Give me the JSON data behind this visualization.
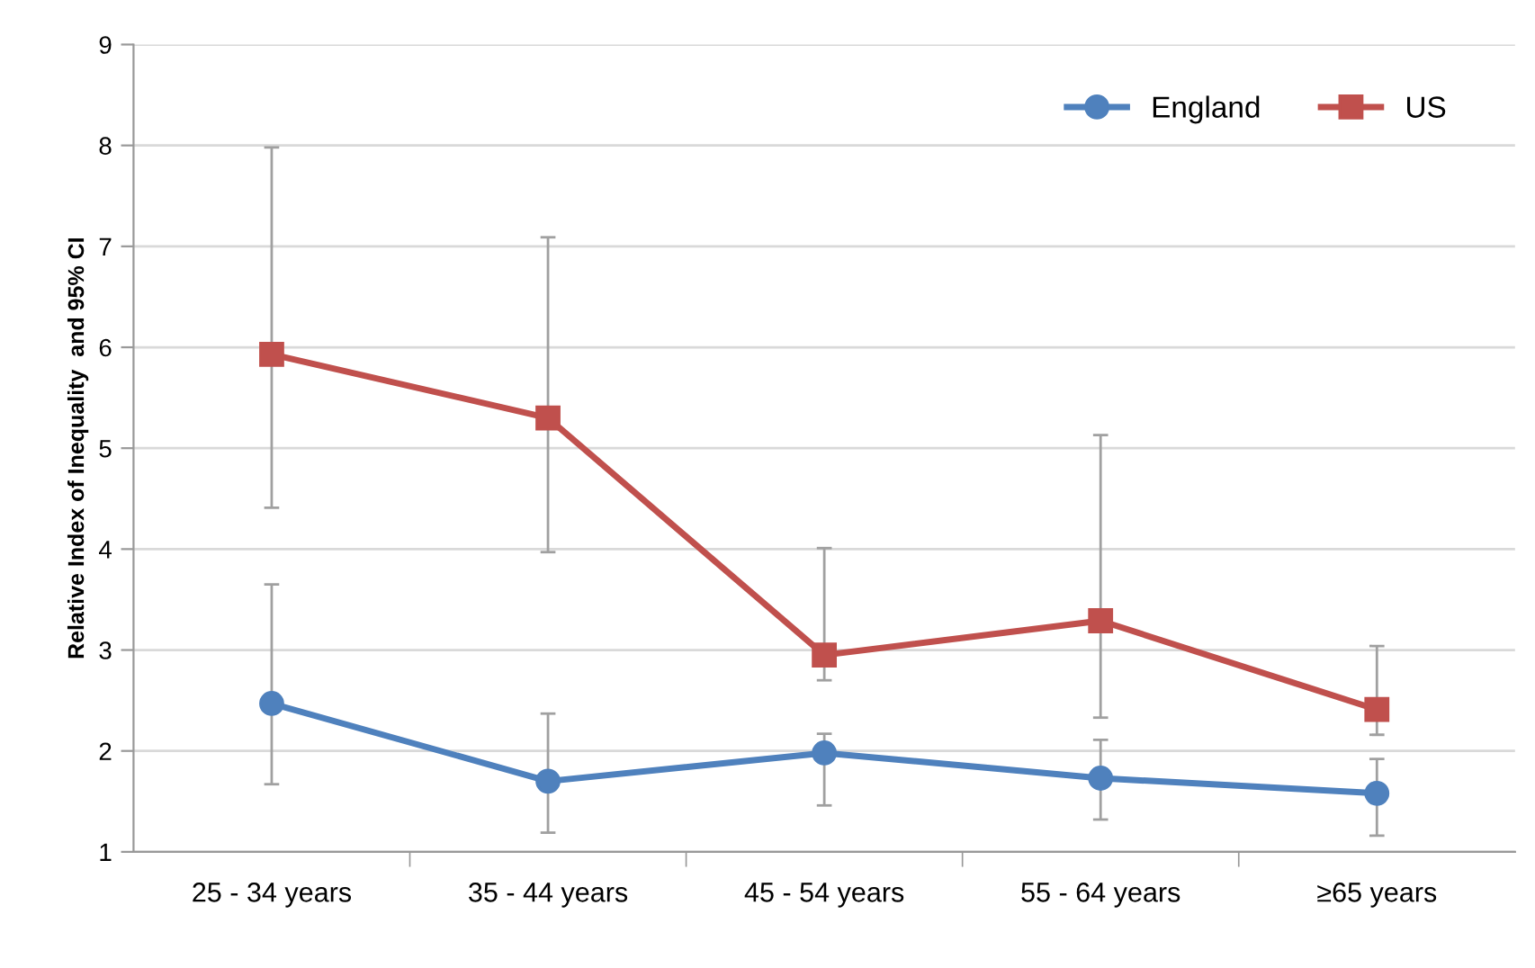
{
  "chart_data": {
    "type": "line",
    "ylabel": "Relative Index of Inequality  and 95% CI",
    "categories": [
      "25 - 34 years",
      "35 - 44 years",
      "45 - 54 years",
      "55 - 64 years",
      "≥65 years"
    ],
    "series": [
      {
        "name": "England",
        "color": "#4f81bd",
        "marker": "circle",
        "values": [
          2.47,
          1.7,
          1.98,
          1.73,
          1.58
        ],
        "errors": [
          [
            1.67,
            3.65
          ],
          [
            1.19,
            2.37
          ],
          [
            1.46,
            2.17
          ],
          [
            1.32,
            2.11
          ],
          [
            1.16,
            1.92
          ]
        ]
      },
      {
        "name": "US",
        "color": "#c0504d",
        "marker": "square",
        "values": [
          5.93,
          5.3,
          2.95,
          3.29,
          2.41
        ],
        "errors": [
          [
            4.41,
            7.98
          ],
          [
            3.97,
            7.09
          ],
          [
            2.7,
            4.01
          ],
          [
            2.33,
            5.13
          ],
          [
            2.16,
            3.04
          ]
        ]
      }
    ],
    "ylim": [
      1,
      9
    ],
    "yticks": [
      1,
      2,
      3,
      4,
      5,
      6,
      7,
      8,
      9
    ],
    "grid": "y",
    "legend": "top right",
    "line_style": "solid"
  }
}
